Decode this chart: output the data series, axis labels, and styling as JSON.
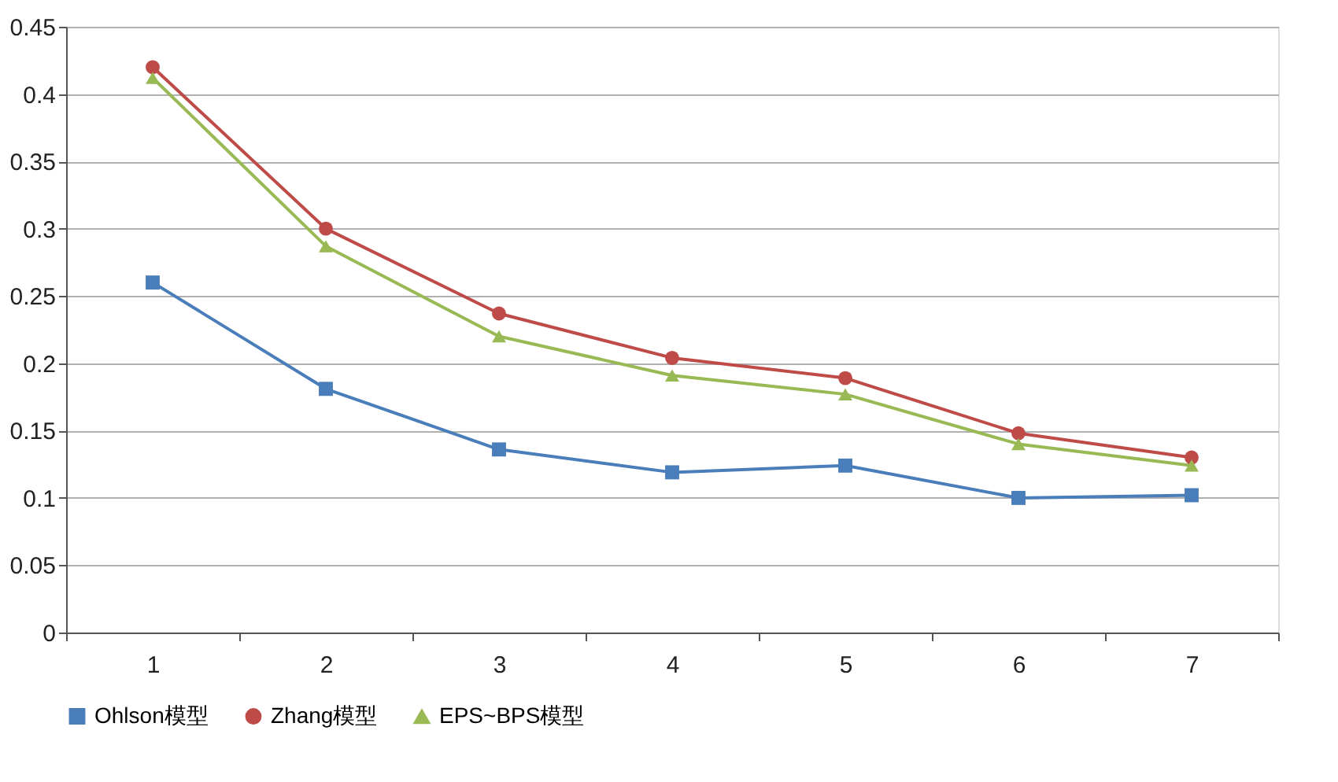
{
  "chart_data": {
    "type": "line",
    "categories": [
      "1",
      "2",
      "3",
      "4",
      "5",
      "6",
      "7"
    ],
    "series": [
      {
        "name": "Ohlson模型",
        "color": "#4a7ebb",
        "marker": "square",
        "values": [
          0.26,
          0.181,
          0.136,
          0.119,
          0.124,
          0.1,
          0.102
        ]
      },
      {
        "name": "Zhang模型",
        "color": "#be4b48",
        "marker": "circle",
        "values": [
          0.42,
          0.3,
          0.237,
          0.204,
          0.189,
          0.148,
          0.13
        ]
      },
      {
        "name": "EPS~BPS模型",
        "color": "#98b954",
        "marker": "triangle",
        "values": [
          0.412,
          0.287,
          0.22,
          0.191,
          0.177,
          0.14,
          0.124
        ]
      }
    ],
    "ylim": [
      0,
      0.45
    ],
    "yticks": [
      0,
      0.05,
      0.1,
      0.15,
      0.2,
      0.25,
      0.3,
      0.35,
      0.4,
      0.45
    ],
    "grid": "y",
    "legend": "bottom",
    "line_style": "solid"
  }
}
